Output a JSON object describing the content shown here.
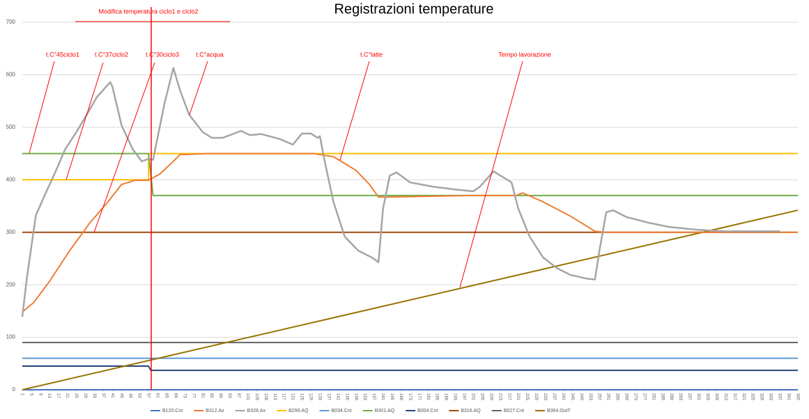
{
  "chart_data": {
    "type": "line",
    "title": "Registrazioni temperature",
    "annotations": [
      "Modifica temperatura ciclo1 e ciclo2",
      "t.C°45ciclo1",
      "t.C°37ciclo2",
      "t.C°30ciclo3",
      "t.C°acqua",
      "t.C°latte",
      "Tempo lavorazione"
    ],
    "xlim": [
      1,
      345
    ],
    "xticks": [
      1,
      5,
      9,
      13,
      17,
      21,
      25,
      29,
      33,
      37,
      41,
      45,
      49,
      53,
      57,
      61,
      65,
      69,
      73,
      77,
      81,
      85,
      89,
      93,
      97,
      101,
      105,
      109,
      113,
      117,
      121,
      125,
      129,
      133,
      137,
      141,
      145,
      149,
      153,
      157,
      161,
      165,
      169,
      173,
      177,
      181,
      185,
      189,
      193,
      197,
      201,
      205,
      209,
      213,
      217,
      221,
      225,
      229,
      233,
      237,
      241,
      245,
      249,
      253,
      257,
      261,
      265,
      269,
      273,
      277,
      281,
      285,
      289,
      293,
      297,
      301,
      305,
      309,
      313,
      317,
      321,
      325,
      329,
      333,
      337,
      341,
      345
    ],
    "ylim": [
      0,
      700
    ],
    "yticks": [
      0,
      100,
      200,
      300,
      400,
      500,
      600,
      700
    ],
    "grid": true,
    "legend": "bottom",
    "series": [
      {
        "name": "B120.Cnt",
        "color": "#4472c4",
        "x": [
          1,
          345
        ],
        "values": [
          0,
          0
        ]
      },
      {
        "name": "B312.Ax",
        "color": "#ed7d31",
        "x": [
          1,
          6,
          13,
          22,
          31,
          39,
          45,
          51,
          57,
          62,
          67,
          71,
          84,
          130,
          139,
          149,
          155,
          159,
          163,
          200,
          220,
          223,
          232,
          244,
          255,
          260,
          345
        ],
        "values": [
          148,
          166,
          206,
          265,
          318,
          358,
          391,
          399,
          399,
          411,
          431,
          448,
          450,
          450,
          444,
          418,
          391,
          367,
          367,
          370,
          370,
          375,
          358,
          331,
          302,
          300,
          300
        ]
      },
      {
        "name": "B328.Ax",
        "color": "#a5a5a5",
        "x": [
          1,
          3,
          7,
          11,
          16,
          20,
          25,
          30,
          34,
          40,
          41,
          45,
          50,
          54,
          57,
          59,
          64,
          68,
          71,
          75,
          81,
          85,
          90,
          98,
          102,
          107,
          115,
          121,
          125,
          129,
          132,
          133,
          135,
          139,
          144,
          150,
          156,
          159,
          161,
          164,
          167,
          173,
          183,
          192,
          201,
          204,
          210,
          218,
          221,
          226,
          232,
          238,
          244,
          251,
          255,
          257,
          260,
          263,
          269,
          279,
          288,
          300,
          312,
          337
        ],
        "values": [
          139,
          212,
          332,
          371,
          418,
          458,
          491,
          527,
          557,
          586,
          577,
          504,
          458,
          435,
          440,
          438,
          544,
          613,
          570,
          524,
          491,
          480,
          480,
          493,
          485,
          487,
          478,
          467,
          488,
          488,
          480,
          483,
          438,
          358,
          292,
          265,
          252,
          243,
          345,
          408,
          414,
          395,
          387,
          382,
          378,
          387,
          416,
          395,
          345,
          292,
          252,
          232,
          219,
          212,
          210,
          265,
          338,
          342,
          329,
          318,
          310,
          305,
          302,
          302
        ]
      },
      {
        "name": "B299.AQ",
        "color": "#ffc000",
        "x": [
          1,
          57,
          57,
          345
        ],
        "values": [
          400,
          400,
          450,
          450
        ]
      },
      {
        "name": "B034.Cnt",
        "color": "#5b9bd5",
        "x": [
          1,
          345
        ],
        "values": [
          60,
          60
        ]
      },
      {
        "name": "B301.AQ",
        "color": "#70ad47",
        "x": [
          1,
          57,
          59,
          345
        ],
        "values": [
          450,
          450,
          370,
          370
        ]
      },
      {
        "name": "B004.Cnt",
        "color": "#264478",
        "x": [
          1,
          57,
          58,
          345
        ],
        "values": [
          45,
          45,
          37,
          37
        ]
      },
      {
        "name": "B316.AQ",
        "color": "#9e480e",
        "x": [
          1,
          345
        ],
        "values": [
          300,
          300
        ]
      },
      {
        "name": "B027.Cnt",
        "color": "#636363",
        "x": [
          1,
          345
        ],
        "values": [
          90,
          90
        ]
      },
      {
        "name": "B364.OutT",
        "color": "#997300",
        "x": [
          1,
          345
        ],
        "values": [
          0,
          342
        ]
      }
    ]
  }
}
